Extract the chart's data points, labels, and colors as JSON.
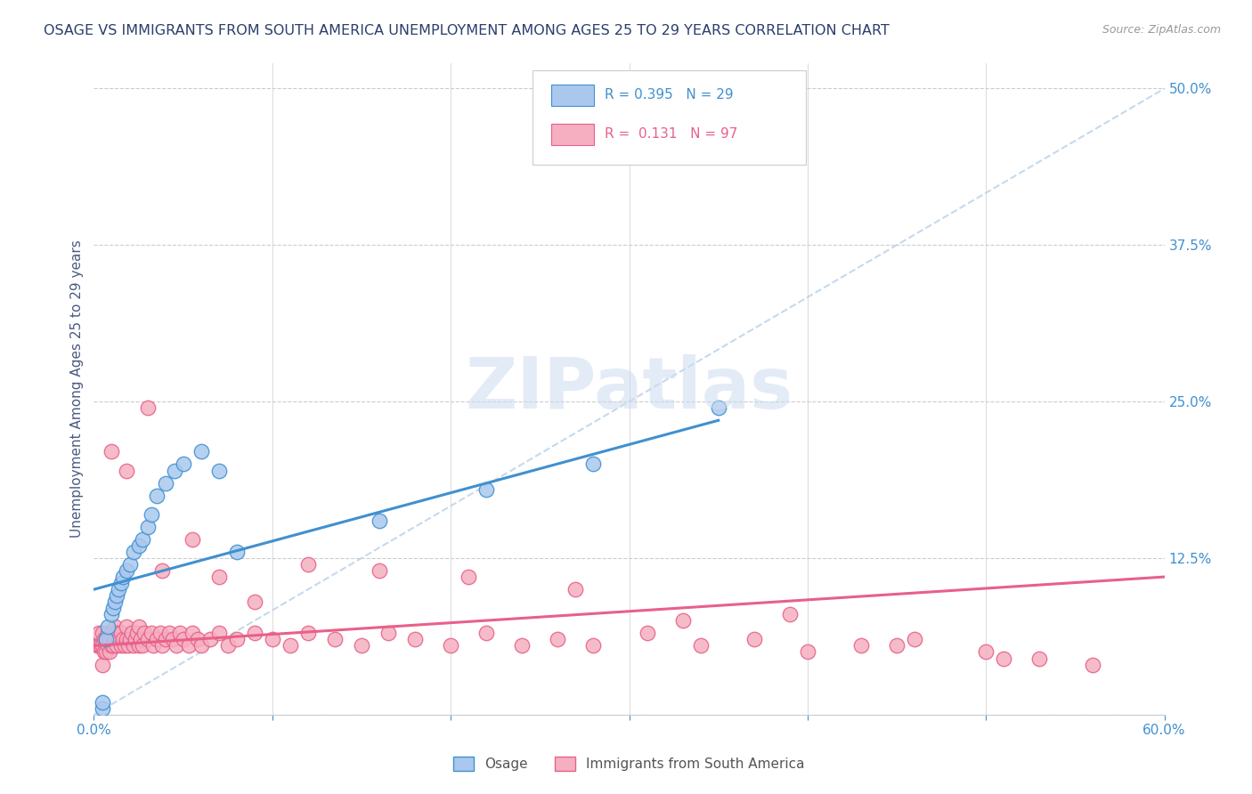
{
  "title": "OSAGE VS IMMIGRANTS FROM SOUTH AMERICA UNEMPLOYMENT AMONG AGES 25 TO 29 YEARS CORRELATION CHART",
  "source": "Source: ZipAtlas.com",
  "ylabel": "Unemployment Among Ages 25 to 29 years",
  "xlim": [
    0.0,
    0.6
  ],
  "ylim": [
    0.0,
    0.52
  ],
  "color_osage": "#aac8ee",
  "color_sa": "#f5afc0",
  "line_color_osage": "#4090d0",
  "line_color_sa": "#e8608a",
  "dashed_line_color": "#b8d0e8",
  "title_color": "#2c3e6b",
  "axis_label_color": "#4a5a80",
  "tick_color": "#4090d0",
  "watermark": "ZIPatlas",
  "osage_x": [
    0.005,
    0.005,
    0.007,
    0.008,
    0.01,
    0.011,
    0.012,
    0.013,
    0.014,
    0.015,
    0.016,
    0.018,
    0.02,
    0.022,
    0.025,
    0.027,
    0.03,
    0.032,
    0.035,
    0.04,
    0.045,
    0.05,
    0.06,
    0.07,
    0.08,
    0.16,
    0.22,
    0.28,
    0.35
  ],
  "osage_y": [
    0.005,
    0.01,
    0.06,
    0.07,
    0.08,
    0.085,
    0.09,
    0.095,
    0.1,
    0.105,
    0.11,
    0.115,
    0.12,
    0.13,
    0.135,
    0.14,
    0.15,
    0.16,
    0.175,
    0.185,
    0.195,
    0.2,
    0.21,
    0.195,
    0.13,
    0.155,
    0.18,
    0.2,
    0.245
  ],
  "sa_x": [
    0.002,
    0.003,
    0.003,
    0.004,
    0.005,
    0.005,
    0.005,
    0.006,
    0.006,
    0.007,
    0.007,
    0.008,
    0.008,
    0.009,
    0.009,
    0.01,
    0.01,
    0.011,
    0.012,
    0.012,
    0.013,
    0.013,
    0.014,
    0.015,
    0.015,
    0.016,
    0.017,
    0.018,
    0.018,
    0.019,
    0.02,
    0.021,
    0.022,
    0.023,
    0.024,
    0.025,
    0.025,
    0.026,
    0.027,
    0.028,
    0.03,
    0.032,
    0.033,
    0.035,
    0.037,
    0.038,
    0.04,
    0.042,
    0.044,
    0.046,
    0.048,
    0.05,
    0.053,
    0.055,
    0.058,
    0.06,
    0.065,
    0.07,
    0.075,
    0.08,
    0.09,
    0.1,
    0.11,
    0.12,
    0.135,
    0.15,
    0.165,
    0.18,
    0.2,
    0.22,
    0.24,
    0.26,
    0.28,
    0.31,
    0.34,
    0.37,
    0.4,
    0.43,
    0.46,
    0.5,
    0.53,
    0.56,
    0.038,
    0.055,
    0.07,
    0.09,
    0.12,
    0.16,
    0.21,
    0.27,
    0.33,
    0.39,
    0.45,
    0.51,
    0.01,
    0.018,
    0.03
  ],
  "sa_y": [
    0.055,
    0.055,
    0.065,
    0.055,
    0.04,
    0.055,
    0.065,
    0.05,
    0.06,
    0.05,
    0.06,
    0.055,
    0.065,
    0.05,
    0.06,
    0.055,
    0.065,
    0.055,
    0.06,
    0.07,
    0.055,
    0.065,
    0.06,
    0.055,
    0.065,
    0.06,
    0.055,
    0.06,
    0.07,
    0.055,
    0.06,
    0.065,
    0.055,
    0.06,
    0.065,
    0.055,
    0.07,
    0.06,
    0.055,
    0.065,
    0.06,
    0.065,
    0.055,
    0.06,
    0.065,
    0.055,
    0.06,
    0.065,
    0.06,
    0.055,
    0.065,
    0.06,
    0.055,
    0.065,
    0.06,
    0.055,
    0.06,
    0.065,
    0.055,
    0.06,
    0.065,
    0.06,
    0.055,
    0.065,
    0.06,
    0.055,
    0.065,
    0.06,
    0.055,
    0.065,
    0.055,
    0.06,
    0.055,
    0.065,
    0.055,
    0.06,
    0.05,
    0.055,
    0.06,
    0.05,
    0.045,
    0.04,
    0.115,
    0.14,
    0.11,
    0.09,
    0.12,
    0.115,
    0.11,
    0.1,
    0.075,
    0.08,
    0.055,
    0.045,
    0.21,
    0.195,
    0.245
  ],
  "osage_line_x": [
    0.0,
    0.35
  ],
  "osage_line_y": [
    0.1,
    0.235
  ],
  "sa_line_x": [
    0.0,
    0.6
  ],
  "sa_line_y": [
    0.055,
    0.11
  ]
}
